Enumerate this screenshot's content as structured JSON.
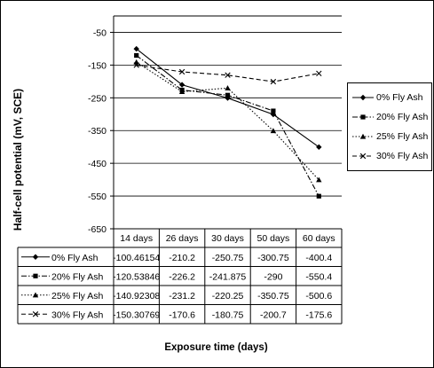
{
  "chart_data": {
    "type": "line",
    "ylabel": "Half-cell potential (mV, SCE)",
    "xlabel": "Exposure time (days)",
    "categories": [
      "14 days",
      "26 days",
      "30 days",
      "50 days",
      "60 days"
    ],
    "ylim": [
      -650,
      0
    ],
    "yticks": [
      -50,
      -150,
      -250,
      -350,
      -450,
      -550,
      -650
    ],
    "legend_position": "right",
    "series": [
      {
        "name": "0% Fly Ash",
        "marker": "diamond",
        "dash": "solid",
        "values": [
          -100.46154,
          -210.2,
          -250.75,
          -300.75,
          -400.4
        ],
        "labels": [
          "-100.46154",
          "-210.2",
          "-250.75",
          "-300.75",
          "-400.4"
        ]
      },
      {
        "name": "20% Fly Ash",
        "marker": "square",
        "dash": "dashdot",
        "values": [
          -120.53846,
          -226.2,
          -241.875,
          -290,
          -550.4
        ],
        "labels": [
          "-120.53846",
          "-226.2",
          "-241.875",
          "-290",
          "-550.4"
        ]
      },
      {
        "name": "25% Fly Ash",
        "marker": "triangle",
        "dash": "dotted",
        "values": [
          -140.92308,
          -231.2,
          -220.25,
          -350.75,
          -500.6
        ],
        "labels": [
          "-140.92308",
          "-231.2",
          "-220.25",
          "-350.75",
          "-500.6"
        ]
      },
      {
        "name": "30% Fly Ash",
        "marker": "x",
        "dash": "dashed",
        "values": [
          -150.30769,
          -170.6,
          -180.75,
          -200.7,
          -175.6
        ],
        "labels": [
          "-150.30769",
          "-170.6",
          "-180.75",
          "-200.7",
          "-175.6"
        ]
      }
    ]
  }
}
